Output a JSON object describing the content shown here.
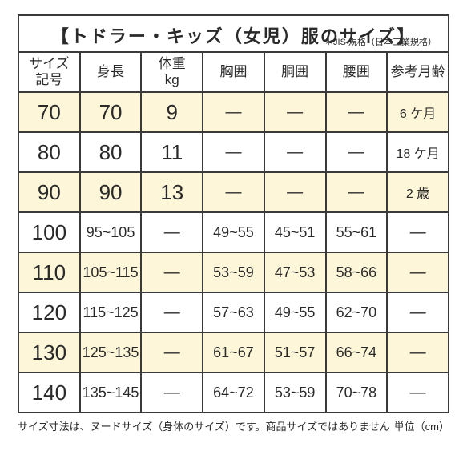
{
  "title": "【トドラー・キッズ（女児）服のサイズ】",
  "subtitle": "＊JIS 規格（日本工業規格）",
  "headers": [
    "サイズ\n記号",
    "身長",
    "体重\nkg",
    "胸囲",
    "胴囲",
    "腰囲",
    "参考月齢"
  ],
  "rows": [
    {
      "hl": true,
      "size": "70",
      "height": "70",
      "weight": "9",
      "chest": "—",
      "waist": "—",
      "hip": "—",
      "age": "6 ケ月"
    },
    {
      "hl": false,
      "size": "80",
      "height": "80",
      "weight": "11",
      "chest": "—",
      "waist": "—",
      "hip": "—",
      "age": "18 ケ月"
    },
    {
      "hl": true,
      "size": "90",
      "height": "90",
      "weight": "13",
      "chest": "—",
      "waist": "—",
      "hip": "—",
      "age": "2 歳"
    },
    {
      "hl": false,
      "size": "100",
      "height": "95~105",
      "weight": "—",
      "chest": "49~55",
      "waist": "45~51",
      "hip": "55~61",
      "age": "—"
    },
    {
      "hl": true,
      "size": "110",
      "height": "105~115",
      "weight": "—",
      "chest": "53~59",
      "waist": "47~53",
      "hip": "58~66",
      "age": "—"
    },
    {
      "hl": false,
      "size": "120",
      "height": "115~125",
      "weight": "—",
      "chest": "57~63",
      "waist": "49~55",
      "hip": "62~70",
      "age": "—"
    },
    {
      "hl": true,
      "size": "130",
      "height": "125~135",
      "weight": "—",
      "chest": "61~67",
      "waist": "51~57",
      "hip": "66~74",
      "age": "—"
    },
    {
      "hl": false,
      "size": "140",
      "height": "135~145",
      "weight": "—",
      "chest": "64~72",
      "waist": "53~59",
      "hip": "70~78",
      "age": "—"
    }
  ],
  "footer_left": "サイズ寸法は、ヌードサイズ（身体のサイズ）です。商品サイズではありません",
  "footer_right": "単位（cm）",
  "colors": {
    "highlight": "#fdf6d9",
    "border": "#3a3a3a",
    "text": "#2a2a2a",
    "background": "#ffffff"
  }
}
